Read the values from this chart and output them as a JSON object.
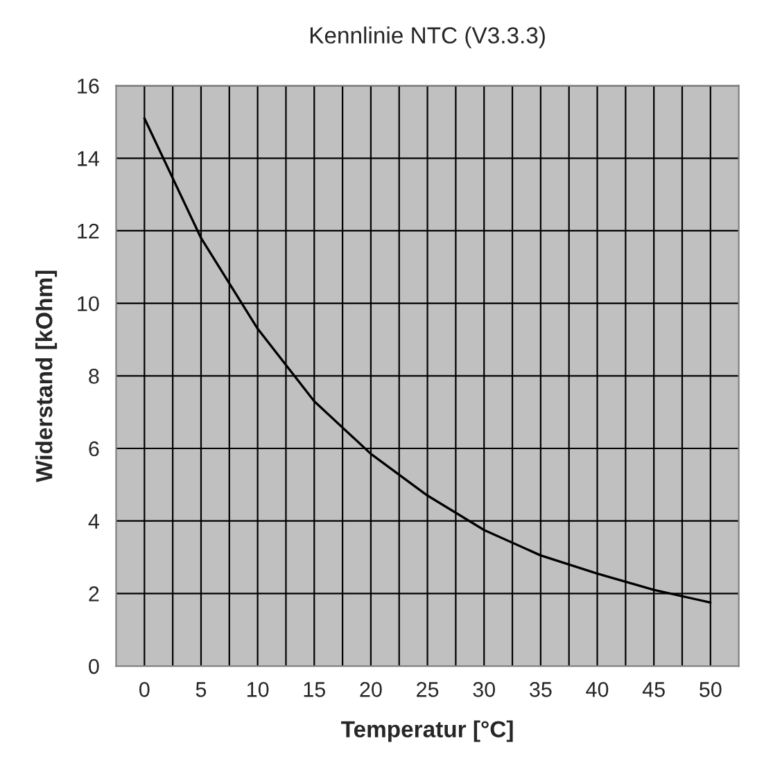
{
  "chart_data": {
    "type": "line",
    "title": "Kennlinie NTC (V3.3.3)",
    "xlabel": "Temperatur [°C]",
    "ylabel": "Widerstand [kOhm]",
    "categories": [
      "0",
      "5",
      "10",
      "15",
      "20",
      "25",
      "30",
      "35",
      "40",
      "45",
      "50"
    ],
    "series": [
      {
        "color": "#000000",
        "values": [
          15.1,
          11.8,
          9.3,
          7.3,
          5.85,
          4.7,
          3.75,
          3.05,
          2.55,
          2.1,
          1.75
        ]
      }
    ],
    "ylim": [
      0,
      16
    ],
    "yticks": [
      0,
      2,
      4,
      6,
      8,
      10,
      12,
      14,
      16
    ],
    "grid": true,
    "marker": "none",
    "line_style": "solid"
  }
}
